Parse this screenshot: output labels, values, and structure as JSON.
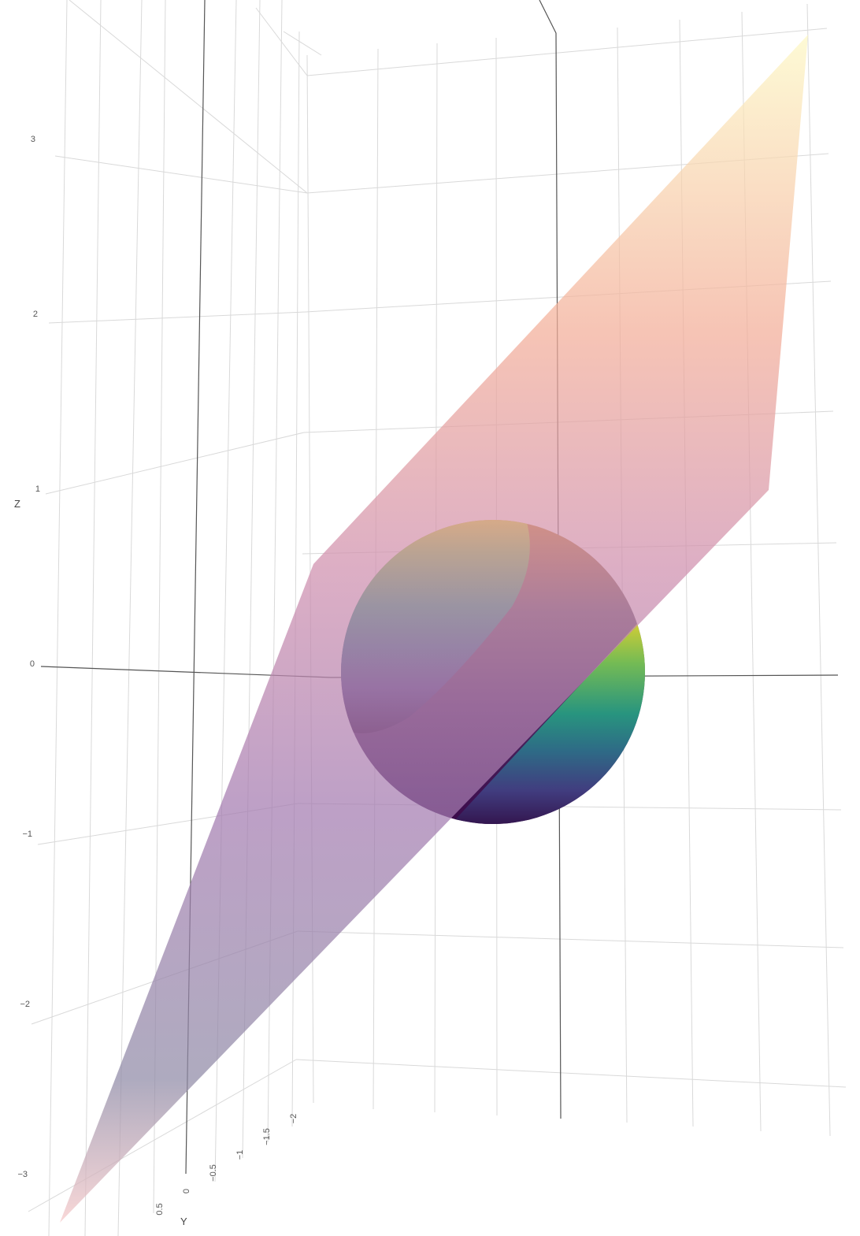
{
  "chart_data": {
    "type": "surface3d",
    "title": "",
    "colors": {
      "sphere_colorscale": [
        "#440154",
        "#3b528b",
        "#21918c",
        "#5ec962",
        "#fde725"
      ],
      "plane_colorscale": [
        "#000004",
        "#3b0f70",
        "#8c2981",
        "#de4968",
        "#fe9f6d",
        "#fcfdbf"
      ],
      "grid": "#d9d9d9",
      "zero_line": "#555555"
    },
    "axes": {
      "x": {
        "title": "",
        "range": [
          -3,
          3
        ]
      },
      "y": {
        "title": "Y",
        "range": [
          -2,
          1
        ],
        "ticks": [
          -2,
          -1.5,
          -1,
          -0.5,
          0,
          0.5
        ],
        "tick_labels": [
          "−2",
          "−1.5",
          "−1",
          "−0.5",
          "0",
          "0.5"
        ]
      },
      "z": {
        "title": "Z",
        "range": [
          -3,
          3.6
        ],
        "ticks": [
          3,
          2,
          1,
          0,
          -1,
          -2,
          -3
        ],
        "tick_labels": [
          "3",
          "2",
          "1",
          "0",
          "−1",
          "−2",
          "−3"
        ]
      }
    },
    "series": [
      {
        "kind": "sphere",
        "center": [
          0,
          0,
          0
        ],
        "radius": 0.9,
        "colorscale": "viridis"
      },
      {
        "kind": "plane",
        "colorscale": "magma",
        "opacity": 0.55
      }
    ],
    "grid": true,
    "legend": "none"
  }
}
